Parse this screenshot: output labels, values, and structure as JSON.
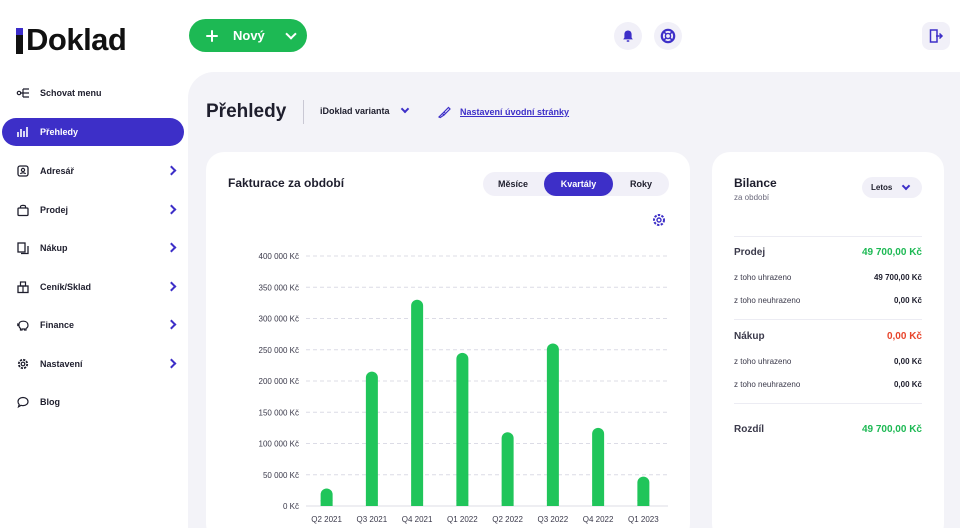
{
  "app": {
    "logo_text": "Doklad"
  },
  "header": {
    "new_button_label": "Nový"
  },
  "sidebar": {
    "items": [
      {
        "label": "Schovat menu"
      },
      {
        "label": "Přehledy"
      },
      {
        "label": "Adresář"
      },
      {
        "label": "Prodej"
      },
      {
        "label": "Nákup"
      },
      {
        "label": "Ceník/Sklad"
      },
      {
        "label": "Finance"
      },
      {
        "label": "Nastavení"
      },
      {
        "label": "Blog"
      }
    ]
  },
  "main": {
    "title": "Přehledy",
    "variant": "iDoklad varianta",
    "home_settings_link": "Nastavení úvodní stránky"
  },
  "chart_card": {
    "title": "Fakturace za období",
    "segments": [
      "Měsíce",
      "Kvartály",
      "Roky"
    ],
    "active_segment": "Kvartály"
  },
  "chart_data": {
    "type": "bar",
    "categories": [
      "Q2 2021",
      "Q3 2021",
      "Q4 2021",
      "Q1 2022",
      "Q2 2022",
      "Q3 2022",
      "Q4 2022",
      "Q1 2023"
    ],
    "values": [
      28000,
      215000,
      330000,
      245000,
      118000,
      260000,
      125000,
      47000
    ],
    "ylim": [
      0,
      400000
    ],
    "y_ticks": [
      0,
      50000,
      100000,
      150000,
      200000,
      250000,
      300000,
      350000,
      400000
    ],
    "y_tick_labels": [
      "0 Kč",
      "50 000 Kč",
      "100 000 Kč",
      "150 000 Kč",
      "200 000 Kč",
      "250 000 Kč",
      "300 000 Kč",
      "350 000 Kč",
      "400 000 Kč"
    ],
    "bar_color": "#20c55a",
    "grid": true
  },
  "balance": {
    "title": "Bilance",
    "subtitle": "za období",
    "period": "Letos",
    "sale_label": "Prodej",
    "sale_value": "49 700,00 Kč",
    "sale_paid_label": "z toho uhrazeno",
    "sale_paid_value": "49 700,00 Kč",
    "sale_unpaid_label": "z toho neuhrazeno",
    "sale_unpaid_value": "0,00 Kč",
    "purchase_label": "Nákup",
    "purchase_value": "0,00 Kč",
    "purchase_paid_label": "z toho uhrazeno",
    "purchase_paid_value": "0,00 Kč",
    "purchase_unpaid_label": "z toho neuhrazeno",
    "purchase_unpaid_value": "0,00 Kč",
    "diff_label": "Rozdíl",
    "diff_value": "49 700,00 Kč",
    "colors": {
      "positive": "#1db954",
      "negative": "#e8452c"
    }
  }
}
